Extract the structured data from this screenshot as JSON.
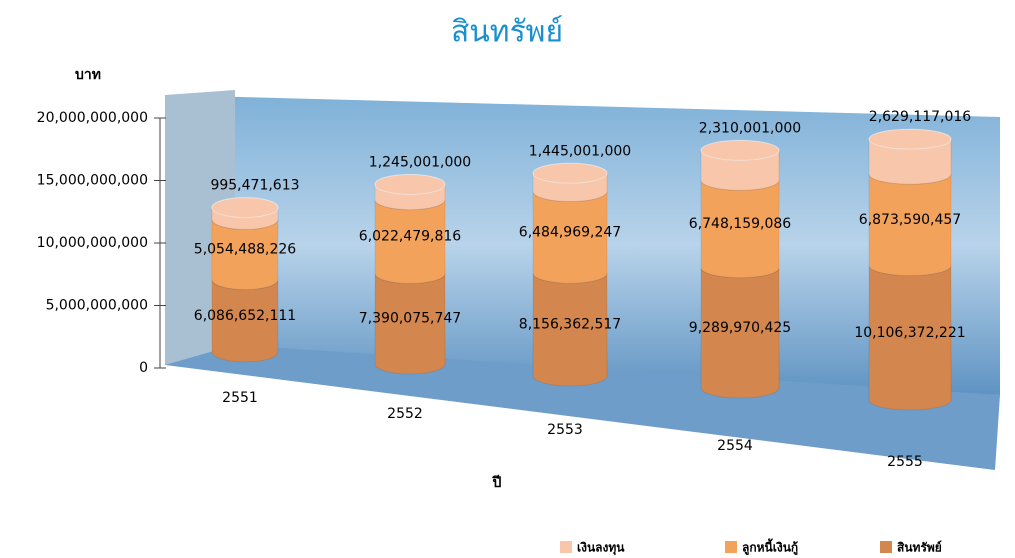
{
  "chart_data": {
    "type": "bar",
    "title": "สินทรัพย์",
    "y_label": "บาท",
    "x_label": "ปี",
    "categories": [
      "2551",
      "2552",
      "2553",
      "2554",
      "2555"
    ],
    "series": [
      {
        "name": "เงินลงทุน",
        "color": "#f7c6ab",
        "values": [
          995471613,
          1245001000,
          1445001000,
          2310001000,
          2629117016
        ],
        "value_labels": [
          "995,471,613",
          "1,245,001,000",
          "1,445,001,000",
          "2,310,001,000",
          "2,629,117,016"
        ]
      },
      {
        "name": "ลูกหนี้เงินกู้",
        "color": "#f3a25c",
        "values": [
          5054488226,
          6022479816,
          6484969247,
          6748159086,
          6873590457
        ],
        "value_labels": [
          "5,054,488,226",
          "6,022,479,816",
          "6,484,969,247",
          "6,748,159,086",
          "6,873,590,457"
        ]
      },
      {
        "name": "สินทรัพย์",
        "color": "#d3874f",
        "values": [
          6086652111,
          7390075747,
          8156362517,
          9289970425,
          10106372221
        ],
        "value_labels": [
          "6,086,652,111",
          "7,390,075,747",
          "8,156,362,517",
          "9,289,970,425",
          "10,106,372,221"
        ]
      }
    ],
    "ylim": [
      0,
      20000000000
    ],
    "yticks": [
      0,
      {
        "value": 5000000000,
        "label": "5,000,000,000"
      },
      {
        "value": 10000000000,
        "label": "10,000,000,000"
      },
      {
        "value": 15000000000,
        "label": "15,000,000,000"
      },
      {
        "value": 20000000000,
        "label": "20,000,000,000"
      }
    ],
    "legend": "bottom-right"
  }
}
